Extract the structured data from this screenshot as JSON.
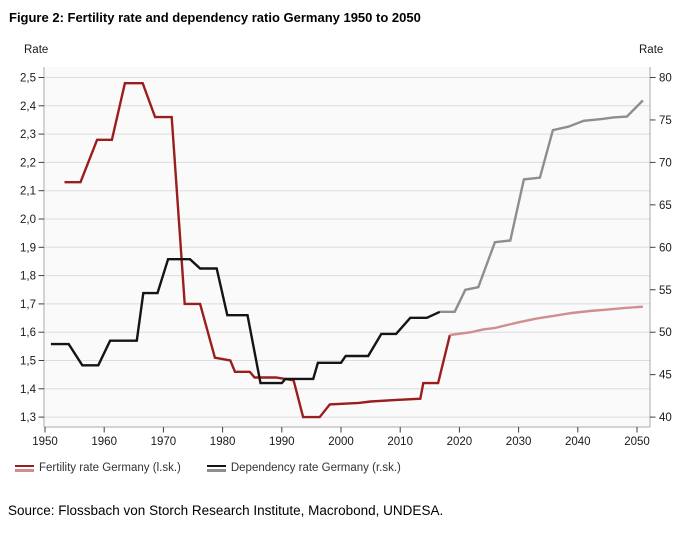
{
  "figure_title": "Figure 2: Fertility rate and dependency ratio Germany 1950 to 2050",
  "source_line": "Source: Flossbach von Storch Research Institute, Macrobond, UNDESA.",
  "legend": {
    "items": [
      {
        "label": "Fertility rate Germany (l.sk.)",
        "solid_color": "#9A1E1E",
        "light_color": "#D08F8F"
      },
      {
        "label": "Dependency rate Germany (r.sk.)",
        "solid_color": "#141414",
        "light_color": "#8E8E8E"
      }
    ]
  },
  "chart_data": {
    "type": "line",
    "title": "Figure 2: Fertility rate and dependency ratio Germany 1950 to 2050",
    "grid": true,
    "legend_position": "bottom",
    "colors": {
      "fertility_historical": "#9A1E1E",
      "fertility_projection": "#D08F8F",
      "dependency_historical": "#141414",
      "dependency_projection": "#8E8E8E",
      "gridline": "#DCDCDC",
      "axis_line": "#A9A9A9",
      "tick_mark": "#3F3F3F"
    },
    "x_axis": {
      "min": 1949.8,
      "max": 2052.2,
      "ticks": [
        1950,
        1960,
        1970,
        1980,
        1990,
        2000,
        2010,
        2020,
        2030,
        2040,
        2050
      ],
      "tick_labels": [
        "1950",
        "1960",
        "1970",
        "1980",
        "1990",
        "2000",
        "2010",
        "2020",
        "2030",
        "2040",
        "2050"
      ]
    },
    "left_axis": {
      "title": "Rate",
      "min": 1.3,
      "max": 2.5,
      "ticks": [
        2.5,
        2.4,
        2.3,
        2.2,
        2.1,
        2.0,
        1.9,
        1.8,
        1.7,
        1.6,
        1.5,
        1.4,
        1.3
      ],
      "tick_labels": [
        "2,5",
        "2,4",
        "2,3",
        "2,2",
        "2,1",
        "2,0",
        "1,9",
        "1,8",
        "1,7",
        "1,6",
        "1,5",
        "1,4",
        "1,3"
      ]
    },
    "right_axis": {
      "title": "Rate",
      "min": 40,
      "max": 80,
      "ticks": [
        80,
        75,
        70,
        65,
        60,
        55,
        50,
        45,
        40
      ],
      "tick_labels": [
        "80",
        "75",
        "70",
        "65",
        "60",
        "55",
        "50",
        "45",
        "40"
      ]
    },
    "series": [
      {
        "name": "Fertility rate Germany (l.sk.) historical",
        "axis": "left",
        "color_key": "fertility_historical",
        "points": [
          [
            1953.3,
            2.13
          ],
          [
            1956,
            2.13
          ],
          [
            1958.8,
            2.28
          ],
          [
            1961.3,
            2.28
          ],
          [
            1963.5,
            2.48
          ],
          [
            1966.5,
            2.48
          ],
          [
            1968.6,
            2.36
          ],
          [
            1971.4,
            2.36
          ],
          [
            1973.6,
            1.7
          ],
          [
            1976.2,
            1.7
          ],
          [
            1978.7,
            1.51
          ],
          [
            1981.3,
            1.5
          ],
          [
            1982.1,
            1.46
          ],
          [
            1984.6,
            1.46
          ],
          [
            1985.4,
            1.44
          ],
          [
            1989,
            1.44
          ],
          [
            1992,
            1.43
          ],
          [
            1993.6,
            1.3
          ],
          [
            1996.4,
            1.3
          ],
          [
            1998.1,
            1.345
          ],
          [
            2003,
            1.35
          ],
          [
            2005,
            1.355
          ],
          [
            2009,
            1.36
          ],
          [
            2013.4,
            1.365
          ],
          [
            2013.9,
            1.42
          ],
          [
            2016.4,
            1.42
          ],
          [
            2018.4,
            1.59
          ]
        ]
      },
      {
        "name": "Fertility rate Germany (l.sk.) projection",
        "axis": "left",
        "color_key": "fertility_projection",
        "points": [
          [
            2018.4,
            1.59
          ],
          [
            2022,
            1.6
          ],
          [
            2024,
            1.61
          ],
          [
            2026,
            1.615
          ],
          [
            2028,
            1.625
          ],
          [
            2030,
            1.635
          ],
          [
            2033,
            1.648
          ],
          [
            2036,
            1.658
          ],
          [
            2039,
            1.668
          ],
          [
            2042,
            1.675
          ],
          [
            2045,
            1.68
          ],
          [
            2048,
            1.686
          ],
          [
            2051,
            1.69
          ]
        ]
      },
      {
        "name": "Dependency rate Germany (r.sk.) historical",
        "axis": "right",
        "color_key": "dependency_historical",
        "points": [
          [
            1951,
            48.6
          ],
          [
            1954,
            48.6
          ],
          [
            1956.3,
            46.1
          ],
          [
            1959,
            46.1
          ],
          [
            1961,
            49.0
          ],
          [
            1965.5,
            49.0
          ],
          [
            1966.6,
            54.6
          ],
          [
            1969,
            54.6
          ],
          [
            1970.8,
            58.6
          ],
          [
            1974.5,
            58.6
          ],
          [
            1976.2,
            57.5
          ],
          [
            1979,
            57.5
          ],
          [
            1980.8,
            52.0
          ],
          [
            1984.2,
            52.0
          ],
          [
            1986.4,
            44.0
          ],
          [
            1990,
            44.0
          ],
          [
            1990.6,
            44.5
          ],
          [
            1995.3,
            44.5
          ],
          [
            1996.1,
            46.4
          ],
          [
            2000,
            46.4
          ],
          [
            2000.8,
            47.2
          ],
          [
            2004.6,
            47.2
          ],
          [
            2006.8,
            49.8
          ],
          [
            2009.3,
            49.8
          ],
          [
            2011.7,
            51.7
          ],
          [
            2014.5,
            51.7
          ],
          [
            2016.7,
            52.4
          ]
        ]
      },
      {
        "name": "Dependency rate Germany (r.sk.) projection",
        "axis": "right",
        "color_key": "dependency_projection",
        "points": [
          [
            2016.7,
            52.4
          ],
          [
            2019.2,
            52.4
          ],
          [
            2021,
            55.0
          ],
          [
            2023.2,
            55.3
          ],
          [
            2026,
            60.6
          ],
          [
            2028.6,
            60.8
          ],
          [
            2030.9,
            68.0
          ],
          [
            2033.6,
            68.2
          ],
          [
            2035.8,
            73.8
          ],
          [
            2038.4,
            74.2
          ],
          [
            2041,
            74.9
          ],
          [
            2044,
            75.1
          ],
          [
            2046,
            75.3
          ],
          [
            2048.3,
            75.4
          ],
          [
            2051,
            77.3
          ]
        ]
      }
    ]
  }
}
